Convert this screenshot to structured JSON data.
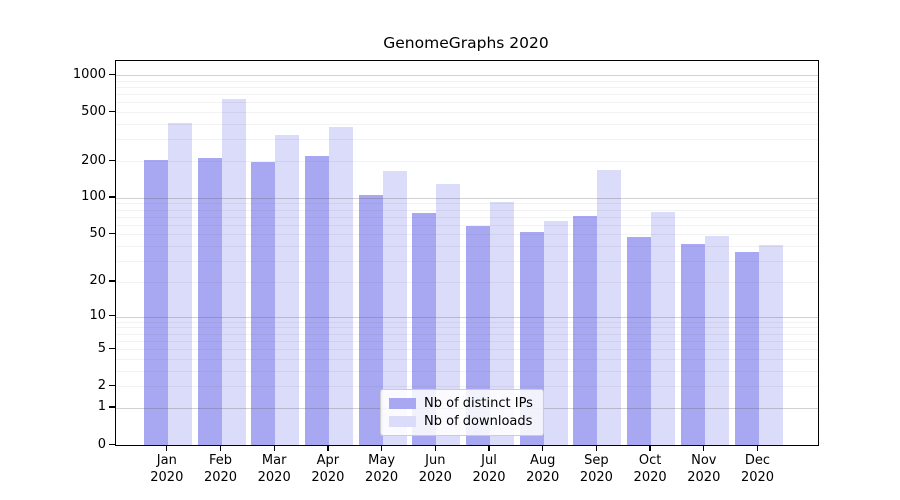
{
  "chart_data": {
    "type": "bar",
    "title": "GenomeGraphs 2020",
    "categories": [
      "Jan",
      "Feb",
      "Mar",
      "Apr",
      "May",
      "Jun",
      "Jul",
      "Aug",
      "Sep",
      "Oct",
      "Nov",
      "Dec"
    ],
    "category_year_line": "2020",
    "series": [
      {
        "name": "Nb of distinct IPs",
        "color": "#a8a8f2",
        "values": [
          205,
          210,
          195,
          220,
          105,
          75,
          59,
          52,
          71,
          48,
          42,
          36
        ]
      },
      {
        "name": "Nb of downloads",
        "color": "#dbdbfa",
        "values": [
          405,
          640,
          325,
          380,
          165,
          130,
          92,
          64,
          170,
          76,
          49,
          41
        ]
      }
    ],
    "xlabel": "",
    "ylabel": "",
    "y_scale": "log10(1+v)",
    "ylim": [
      0,
      1300
    ],
    "y_ticks": [
      0,
      1,
      2,
      5,
      10,
      20,
      50,
      100,
      200,
      500,
      1000
    ],
    "grid": {
      "major_gridline_values": [
        1,
        10,
        100,
        1000
      ],
      "minor_gridline_values": [
        2,
        3,
        4,
        5,
        6,
        7,
        8,
        9,
        20,
        30,
        40,
        50,
        60,
        70,
        80,
        90,
        200,
        300,
        400,
        500,
        600,
        700,
        800,
        900
      ]
    },
    "legend": {
      "position": "bottom-center",
      "entries": [
        "Nb of distinct IPs",
        "Nb of downloads"
      ]
    }
  }
}
